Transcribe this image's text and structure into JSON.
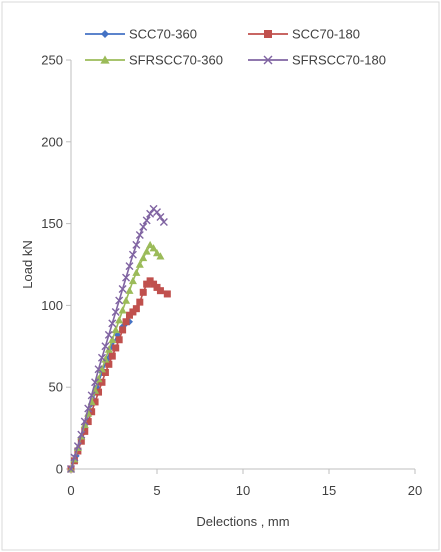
{
  "chart_data": {
    "type": "line",
    "title": "",
    "xlabel": "Delections , mm",
    "ylabel": "Load  kN",
    "xlim": [
      0,
      20
    ],
    "ylim": [
      0,
      250
    ],
    "xticks": [
      0,
      5,
      10,
      15,
      20
    ],
    "yticks": [
      0,
      50,
      100,
      150,
      200,
      250
    ],
    "grid": false,
    "legend_position": "top",
    "series": [
      {
        "name": "SCC70-360",
        "color": "#4472C4",
        "marker": "diamond",
        "x": [
          0,
          0.3,
          0.6,
          0.9,
          1.2,
          1.5,
          1.8,
          2.1,
          2.4,
          2.7,
          3.0,
          3.2,
          3.4
        ],
        "y": [
          0,
          8,
          18,
          29,
          40,
          50,
          59,
          67,
          75,
          82,
          87,
          89,
          90
        ]
      },
      {
        "name": "SCC70-180",
        "color": "#C0504D",
        "marker": "square",
        "x": [
          0,
          0.2,
          0.4,
          0.6,
          0.8,
          1.0,
          1.2,
          1.4,
          1.6,
          1.8,
          2.0,
          2.2,
          2.4,
          2.6,
          2.8,
          3.0,
          3.2,
          3.4,
          3.6,
          3.8,
          4.0,
          4.2,
          4.4,
          4.6,
          4.8,
          5.0,
          5.2,
          5.6
        ],
        "y": [
          0,
          5,
          11,
          17,
          23,
          29,
          35,
          41,
          47,
          53,
          59,
          64,
          69,
          74,
          79,
          85,
          90,
          94,
          96,
          98,
          102,
          108,
          113,
          115,
          113,
          111,
          109,
          107
        ]
      },
      {
        "name": "SFRSCC70-360",
        "color": "#9BBB59",
        "marker": "triangle",
        "x": [
          0,
          0.2,
          0.4,
          0.6,
          0.8,
          1.0,
          1.2,
          1.4,
          1.6,
          1.8,
          2.0,
          2.2,
          2.4,
          2.6,
          2.8,
          3.0,
          3.2,
          3.4,
          3.6,
          3.8,
          4.0,
          4.2,
          4.4,
          4.6,
          4.8,
          5.0,
          5.2
        ],
        "y": [
          0,
          6,
          13,
          20,
          27,
          34,
          41,
          48,
          55,
          61,
          67,
          73,
          79,
          85,
          91,
          97,
          103,
          109,
          115,
          120,
          125,
          129,
          133,
          137,
          135,
          132,
          130
        ]
      },
      {
        "name": "SFRSCC70-180",
        "color": "#8064A2",
        "marker": "x",
        "x": [
          0,
          0.2,
          0.4,
          0.6,
          0.8,
          1.0,
          1.2,
          1.4,
          1.6,
          1.8,
          2.0,
          2.2,
          2.4,
          2.6,
          2.8,
          3.0,
          3.2,
          3.4,
          3.6,
          3.8,
          4.0,
          4.2,
          4.4,
          4.6,
          4.8,
          5.0,
          5.2,
          5.4
        ],
        "y": [
          0,
          7,
          14,
          21,
          29,
          37,
          45,
          53,
          61,
          68,
          75,
          82,
          89,
          96,
          103,
          110,
          117,
          124,
          131,
          137,
          143,
          148,
          152,
          156,
          159,
          157,
          154,
          151
        ]
      }
    ]
  }
}
